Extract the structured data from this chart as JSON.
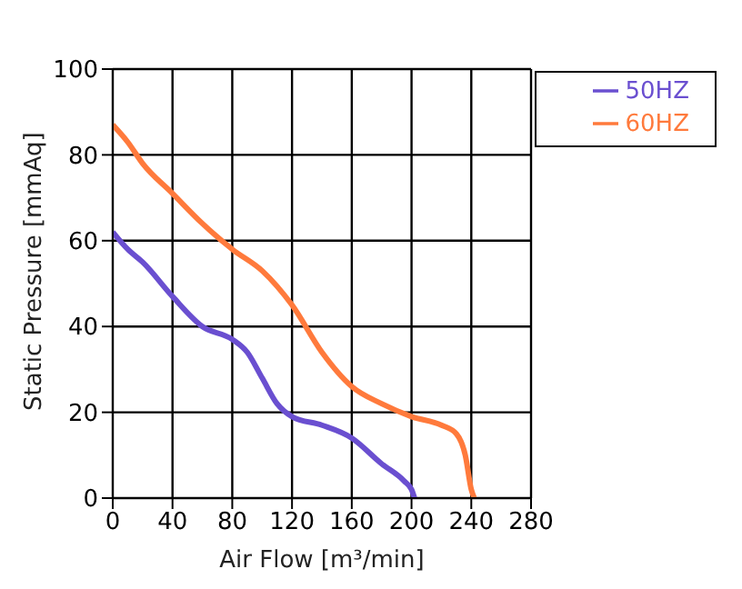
{
  "chart_data": {
    "type": "line",
    "xlabel": "Air Flow [m³/min]",
    "ylabel": "Static Pressure [mmAq]",
    "xlim": [
      0,
      280
    ],
    "xticks": [
      0,
      40,
      80,
      120,
      160,
      200,
      240,
      280
    ],
    "ylim": [
      0,
      100
    ],
    "yticks": [
      0,
      20,
      40,
      60,
      80,
      100
    ],
    "grid": true,
    "legend": "top right",
    "marker": "none",
    "line_style": "solid",
    "series": [
      {
        "name": "50HZ",
        "color": "#6a4fd0",
        "x": [
          0,
          10,
          20,
          40,
          60,
          80,
          90,
          100,
          110,
          120,
          140,
          160,
          180,
          195,
          200,
          202
        ],
        "values": [
          62,
          58,
          55,
          47,
          40,
          37,
          34,
          28,
          22,
          19,
          17,
          14,
          8,
          4,
          2,
          0
        ]
      },
      {
        "name": "60HZ",
        "color": "#ff7a3c",
        "x": [
          0,
          10,
          20,
          40,
          60,
          80,
          100,
          120,
          140,
          160,
          180,
          200,
          220,
          230,
          236,
          240,
          242
        ],
        "values": [
          87,
          83,
          78,
          71,
          64,
          58,
          53,
          45,
          34,
          26,
          22,
          19,
          17,
          15,
          10,
          2,
          0
        ]
      }
    ]
  }
}
